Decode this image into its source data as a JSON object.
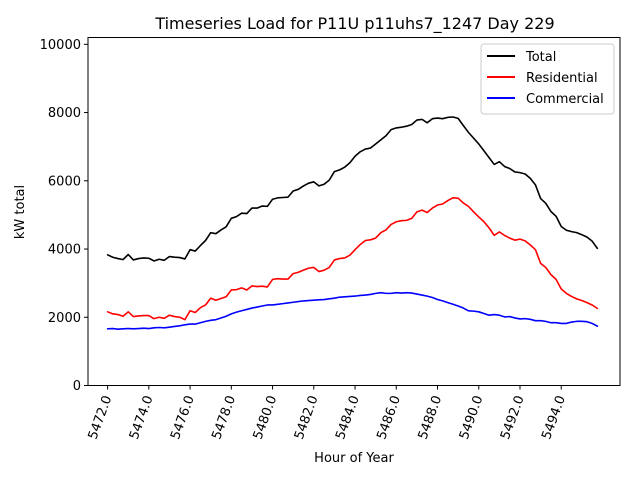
{
  "chart_data": {
    "type": "line",
    "title": "Timeseries Load for P11U p11uhs7_1247  Day 229",
    "xlabel": "Hour of Year",
    "ylabel": "kW total",
    "xlim": [
      5471.05,
      5496.85
    ],
    "ylim": [
      0,
      10200
    ],
    "xticks": [
      5472,
      5474,
      5476,
      5478,
      5480,
      5482,
      5484,
      5486,
      5488,
      5490,
      5492,
      5494
    ],
    "xtick_labels": [
      "5472.0",
      "5474.0",
      "5476.0",
      "5478.0",
      "5480.0",
      "5482.0",
      "5484.0",
      "5486.0",
      "5488.0",
      "5490.0",
      "5492.0",
      "5494.0"
    ],
    "yticks": [
      0,
      2000,
      4000,
      6000,
      8000,
      10000
    ],
    "ytick_labels": [
      "0",
      "2000",
      "4000",
      "6000",
      "8000",
      "10000"
    ],
    "legend_position": "top-right",
    "x": [
      5472.0,
      5472.25,
      5472.5,
      5472.75,
      5473.0,
      5473.25,
      5473.5,
      5473.75,
      5474.0,
      5474.25,
      5474.5,
      5474.75,
      5475.0,
      5475.25,
      5475.5,
      5475.75,
      5476.0,
      5476.25,
      5476.5,
      5476.75,
      5477.0,
      5477.25,
      5477.5,
      5477.75,
      5478.0,
      5478.25,
      5478.5,
      5478.75,
      5479.0,
      5479.25,
      5479.5,
      5479.75,
      5480.0,
      5480.25,
      5480.5,
      5480.75,
      5481.0,
      5481.25,
      5481.5,
      5481.75,
      5482.0,
      5482.25,
      5482.5,
      5482.75,
      5483.0,
      5483.25,
      5483.5,
      5483.75,
      5484.0,
      5484.25,
      5484.5,
      5484.75,
      5485.0,
      5485.25,
      5485.5,
      5485.75,
      5486.0,
      5486.25,
      5486.5,
      5486.75,
      5487.0,
      5487.25,
      5487.5,
      5487.75,
      5488.0,
      5488.25,
      5488.5,
      5488.75,
      5489.0,
      5489.25,
      5489.5,
      5489.75,
      5490.0,
      5490.25,
      5490.5,
      5490.75,
      5491.0,
      5491.25,
      5491.5,
      5491.75,
      5492.0,
      5492.25,
      5492.5,
      5492.75,
      5493.0,
      5493.25,
      5493.5,
      5493.75,
      5494.0,
      5494.25,
      5494.5,
      5494.75,
      5495.0,
      5495.25,
      5495.5,
      5495.75
    ],
    "series": [
      {
        "name": "Total",
        "color": "#000000",
        "values": [
          3830,
          3760,
          3720,
          3690,
          3840,
          3680,
          3720,
          3740,
          3730,
          3650,
          3700,
          3670,
          3780,
          3760,
          3750,
          3710,
          3980,
          3940,
          4100,
          4250,
          4480,
          4450,
          4560,
          4650,
          4900,
          4950,
          5050,
          5040,
          5200,
          5200,
          5260,
          5250,
          5460,
          5500,
          5510,
          5520,
          5700,
          5750,
          5850,
          5930,
          5970,
          5850,
          5900,
          6020,
          6270,
          6320,
          6400,
          6530,
          6720,
          6850,
          6930,
          6960,
          7080,
          7200,
          7320,
          7500,
          7550,
          7570,
          7600,
          7650,
          7780,
          7800,
          7700,
          7820,
          7840,
          7820,
          7860,
          7870,
          7830,
          7620,
          7420,
          7250,
          7080,
          6880,
          6680,
          6480,
          6560,
          6420,
          6360,
          6260,
          6240,
          6200,
          6070,
          5880,
          5480,
          5340,
          5100,
          4960,
          4660,
          4550,
          4510,
          4480,
          4420,
          4350,
          4230,
          4020
        ]
      },
      {
        "name": "Residential",
        "color": "#ff0000",
        "values": [
          2160,
          2100,
          2080,
          2030,
          2160,
          2020,
          2040,
          2050,
          2050,
          1960,
          2000,
          1970,
          2060,
          2020,
          2000,
          1930,
          2190,
          2140,
          2280,
          2360,
          2560,
          2500,
          2550,
          2600,
          2800,
          2810,
          2860,
          2800,
          2920,
          2900,
          2910,
          2890,
          3110,
          3130,
          3120,
          3120,
          3280,
          3320,
          3380,
          3440,
          3460,
          3340,
          3380,
          3460,
          3680,
          3720,
          3740,
          3820,
          3980,
          4130,
          4250,
          4270,
          4320,
          4480,
          4560,
          4720,
          4800,
          4830,
          4840,
          4900,
          5090,
          5140,
          5070,
          5200,
          5290,
          5320,
          5420,
          5500,
          5490,
          5350,
          5250,
          5090,
          4940,
          4800,
          4620,
          4400,
          4500,
          4400,
          4320,
          4260,
          4290,
          4240,
          4120,
          3980,
          3580,
          3460,
          3250,
          3110,
          2830,
          2700,
          2610,
          2540,
          2490,
          2430,
          2360,
          2260
        ]
      },
      {
        "name": "Commercial",
        "color": "#0000ff",
        "values": [
          1660,
          1670,
          1650,
          1660,
          1670,
          1660,
          1670,
          1680,
          1670,
          1690,
          1700,
          1690,
          1710,
          1730,
          1750,
          1780,
          1800,
          1800,
          1840,
          1880,
          1910,
          1930,
          1980,
          2030,
          2100,
          2150,
          2190,
          2230,
          2270,
          2300,
          2330,
          2360,
          2360,
          2380,
          2400,
          2420,
          2440,
          2460,
          2480,
          2490,
          2500,
          2510,
          2520,
          2540,
          2560,
          2590,
          2600,
          2610,
          2620,
          2640,
          2650,
          2670,
          2700,
          2720,
          2700,
          2700,
          2720,
          2710,
          2720,
          2710,
          2680,
          2650,
          2620,
          2580,
          2520,
          2480,
          2430,
          2380,
          2330,
          2270,
          2190,
          2180,
          2160,
          2110,
          2060,
          2080,
          2060,
          2010,
          2020,
          1980,
          1950,
          1960,
          1940,
          1900,
          1900,
          1880,
          1840,
          1840,
          1820,
          1820,
          1860,
          1880,
          1880,
          1870,
          1820,
          1740
        ]
      }
    ]
  }
}
